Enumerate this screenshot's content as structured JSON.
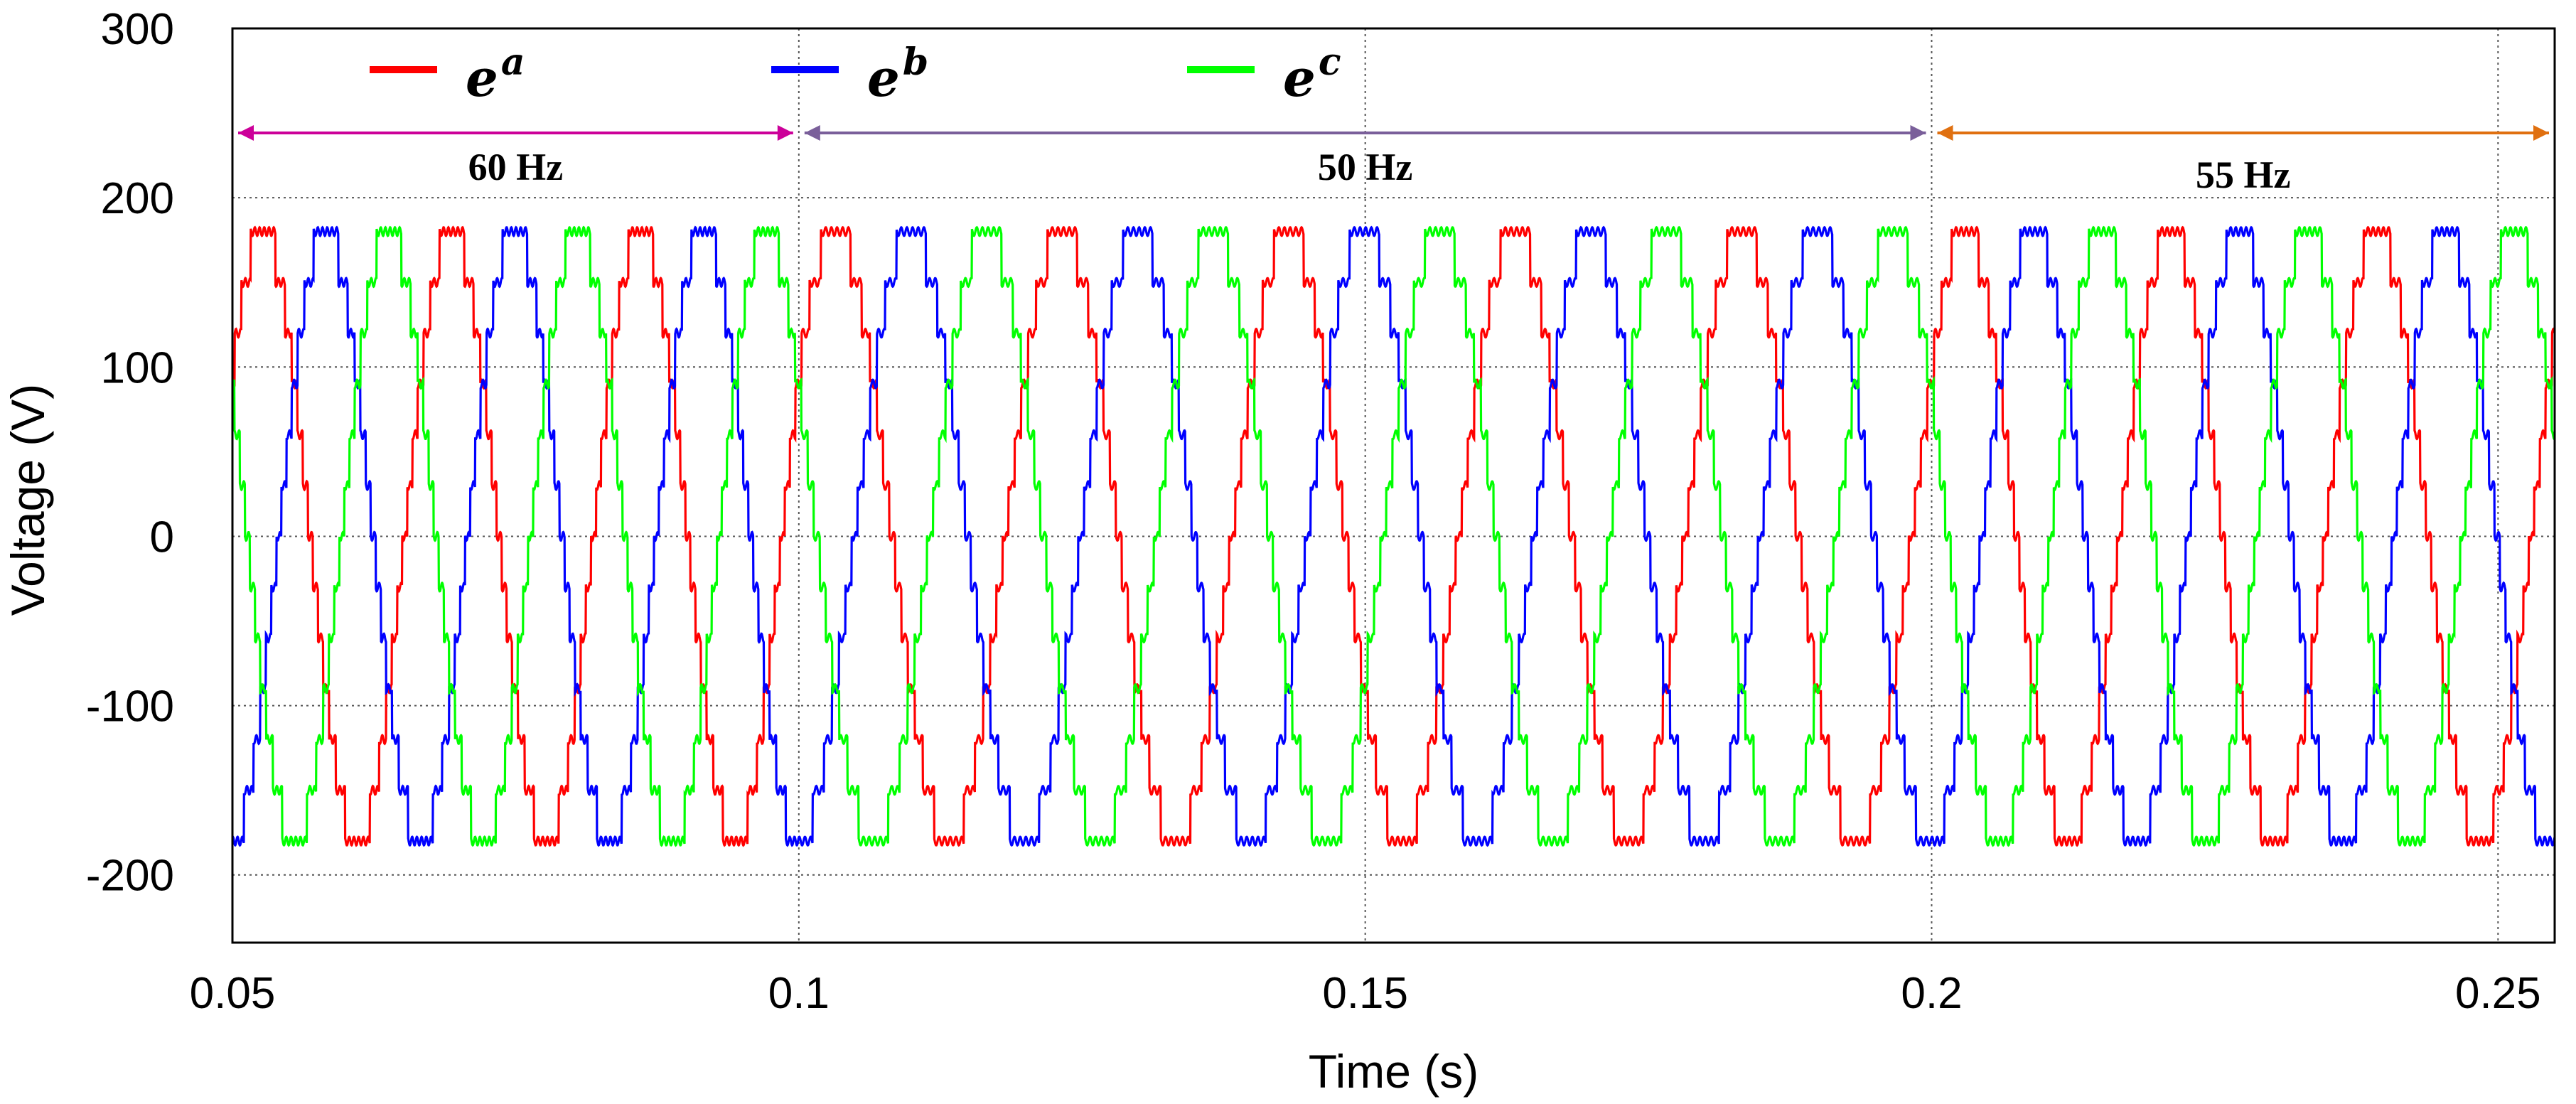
{
  "chart_data": {
    "type": "line",
    "title": "",
    "xlabel": "Time (s)",
    "ylabel": "Voltage (V)",
    "xlim": [
      0.05,
      0.255
    ],
    "ylim": [
      -240,
      300
    ],
    "xticks": [
      0.05,
      0.1,
      0.15,
      0.2,
      0.25
    ],
    "xtick_labels": [
      "0.05",
      "0.1",
      "0.15",
      "0.2",
      "0.25"
    ],
    "yticks": [
      300,
      200,
      100,
      0,
      -100,
      -200
    ],
    "ytick_labels": [
      "300",
      "200",
      "100",
      "0",
      "-100",
      "-200"
    ],
    "grid": "dotted",
    "amplitude": 180,
    "waveform": "stepped six-level inverter output",
    "series": [
      {
        "name": "e",
        "sup": "a",
        "color": "#ff0000",
        "phase_deg": 0
      },
      {
        "name": "e",
        "sup": "b",
        "color": "#0000ff",
        "phase_deg": -120
      },
      {
        "name": "e",
        "sup": "c",
        "color": "#00ff00",
        "phase_deg": 120
      }
    ],
    "frequency_segments": [
      {
        "label": "60 Hz",
        "t_start": 0.05,
        "t_end": 0.1,
        "freq": 60,
        "arrow_color": "#cc0099"
      },
      {
        "label": "50 Hz",
        "t_start": 0.1,
        "t_end": 0.2,
        "freq": 50,
        "arrow_color": "#7a5f9a"
      },
      {
        "label": "55 Hz",
        "t_start": 0.2,
        "t_end": 0.255,
        "freq": 55,
        "arrow_color": "#e07010"
      }
    ]
  }
}
